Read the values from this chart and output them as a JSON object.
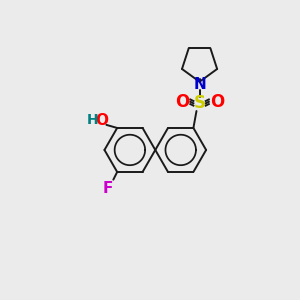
{
  "background_color": "#ebebeb",
  "bond_color": "#1a1a1a",
  "atom_colors": {
    "O": "#ff0000",
    "N": "#0000cc",
    "S": "#cccc00",
    "F": "#cc00cc",
    "H": "#008080",
    "C": "#1a1a1a"
  },
  "figsize": [
    3.0,
    3.0
  ],
  "dpi": 100
}
